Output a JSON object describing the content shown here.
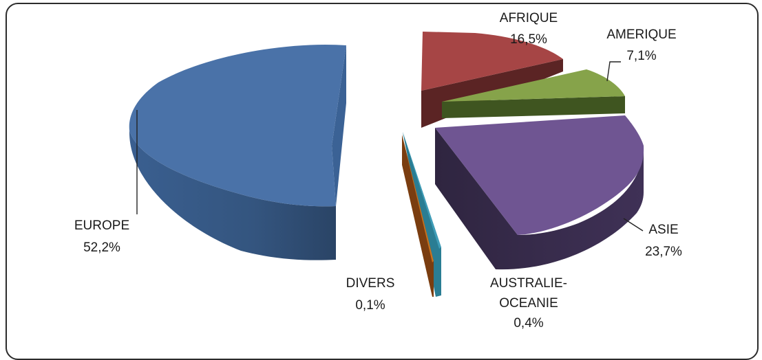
{
  "chart_data": {
    "type": "pie",
    "slices": [
      {
        "id": "europe",
        "label_lines": [
          "EUROPE"
        ],
        "value_text": "52,2%",
        "value": 52.2,
        "color": "#4a72a8"
      },
      {
        "id": "afrique",
        "label_lines": [
          "AFRIQUE"
        ],
        "value_text": "16,5%",
        "value": 16.5,
        "color": "#a64545"
      },
      {
        "id": "amerique",
        "label_lines": [
          "AMERIQUE"
        ],
        "value_text": "7,1%",
        "value": 7.1,
        "color": "#86a34a"
      },
      {
        "id": "asie",
        "label_lines": [
          "ASIE"
        ],
        "value_text": "23,7%",
        "value": 23.7,
        "color": "#6f5592"
      },
      {
        "id": "australie",
        "label_lines": [
          "AUSTRALIE-",
          "OCEANIE"
        ],
        "value_text": "0,4%",
        "value": 0.4,
        "color": "#3f9db8"
      },
      {
        "id": "divers",
        "label_lines": [
          "DIVERS"
        ],
        "value_text": "0,1%",
        "value": 0.1,
        "color": "#c8721e"
      }
    ]
  }
}
